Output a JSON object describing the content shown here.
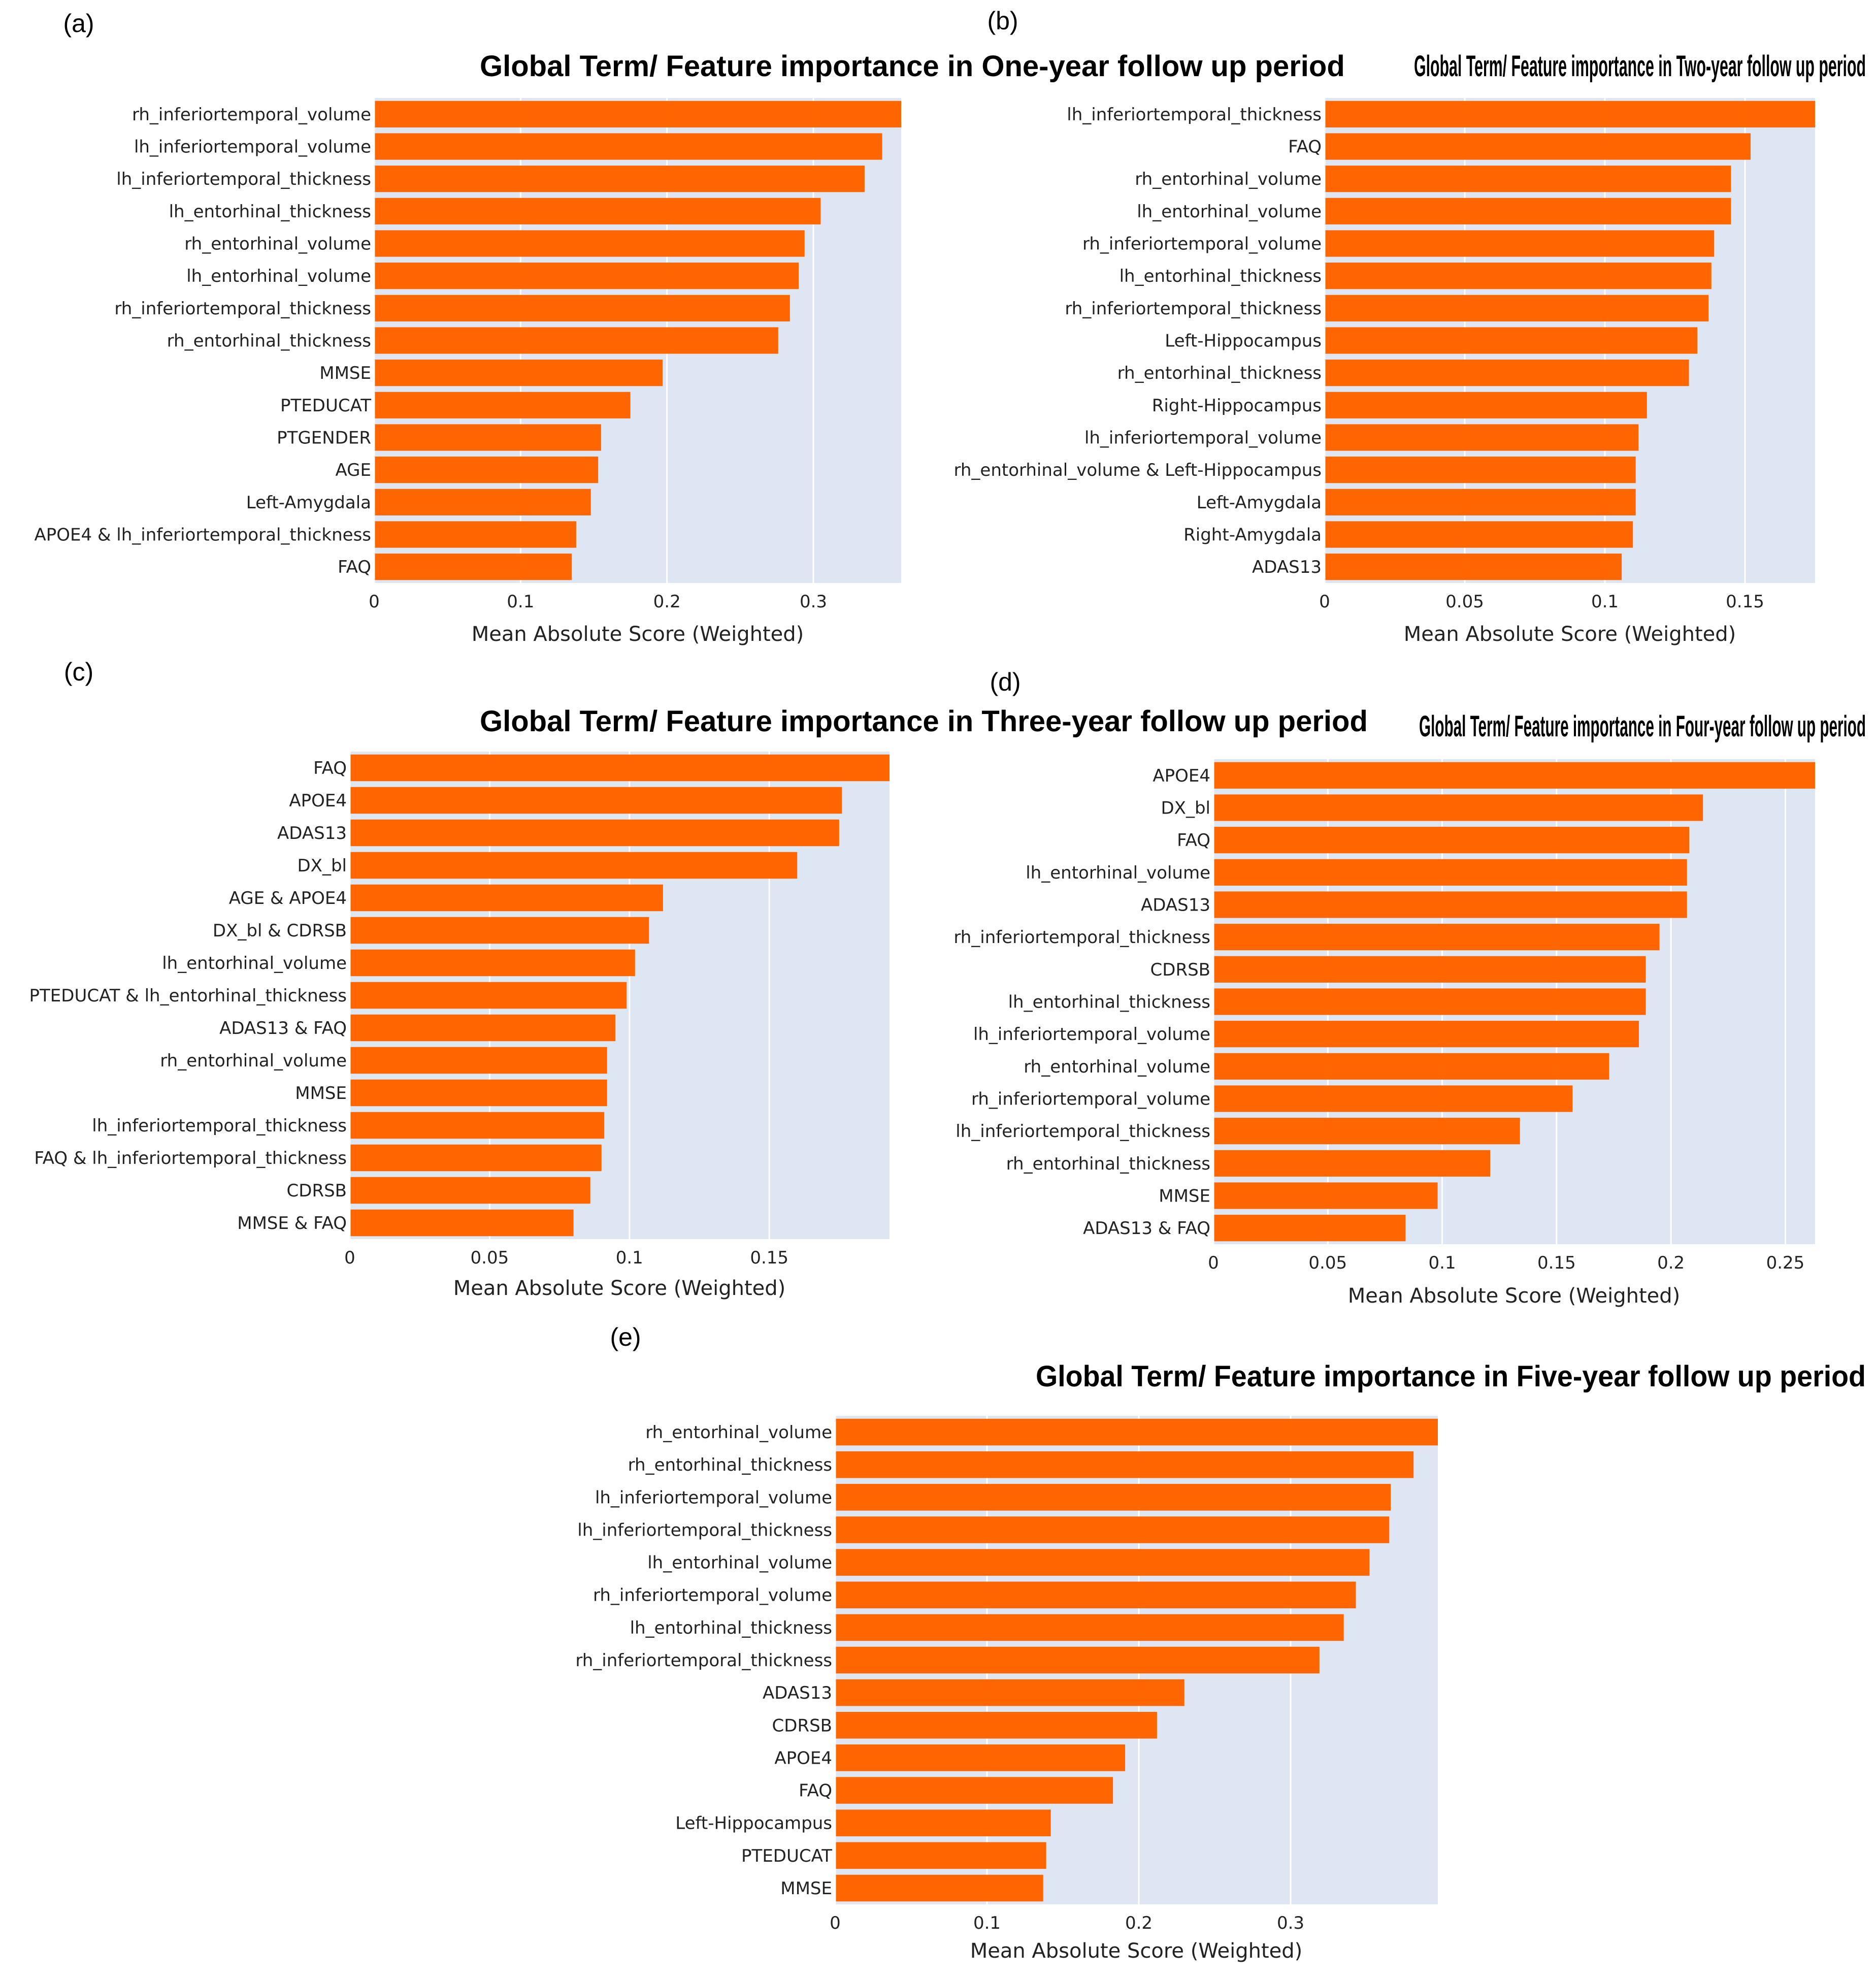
{
  "colors": {
    "bar": "#ff6600",
    "plot_bg": "#dde6f2",
    "grid": "#ffffff"
  },
  "chart_data": [
    {
      "panel": "(a)",
      "type": "bar",
      "orientation": "horizontal",
      "title": "Global Term/ Feature importance in One-year follow up period",
      "xlabel": "Mean Absolute Score (Weighted)",
      "xlim": [
        0,
        0.36
      ],
      "xticks": [
        0,
        0.1,
        0.2,
        0.3
      ],
      "xtick_labels": [
        "0",
        "0.1",
        "0.2",
        "0.3"
      ],
      "categories": [
        "rh_inferiortemporal_volume",
        "lh_inferiortemporal_volume",
        "lh_inferiortemporal_thickness",
        "lh_entorhinal_thickness",
        "rh_entorhinal_volume",
        "lh_entorhinal_volume",
        "rh_inferiortemporal_thickness",
        "rh_entorhinal_thickness",
        "MMSE",
        "PTEDUCAT",
        "PTGENDER",
        "AGE",
        "Left-Amygdala",
        "APOE4 & lh_inferiortemporal_thickness",
        "FAQ"
      ],
      "values": [
        0.36,
        0.347,
        0.335,
        0.305,
        0.294,
        0.29,
        0.284,
        0.276,
        0.197,
        0.175,
        0.155,
        0.153,
        0.148,
        0.138,
        0.135
      ]
    },
    {
      "panel": "(b)",
      "type": "bar",
      "orientation": "horizontal",
      "title": "Global Term/ Feature importance in Two-year follow up period",
      "xlabel": "Mean Absolute Score (Weighted)",
      "xlim": [
        0,
        0.175
      ],
      "xticks": [
        0,
        0.05,
        0.1,
        0.15
      ],
      "xtick_labels": [
        "0",
        "0.05",
        "0.1",
        "0.15"
      ],
      "categories": [
        "lh_inferiortemporal_thickness",
        "FAQ",
        "rh_entorhinal_volume",
        "lh_entorhinal_volume",
        "rh_inferiortemporal_volume",
        "lh_entorhinal_thickness",
        "rh_inferiortemporal_thickness",
        "Left-Hippocampus",
        "rh_entorhinal_thickness",
        "Right-Hippocampus",
        "lh_inferiortemporal_volume",
        "rh_entorhinal_volume & Left-Hippocampus",
        "Left-Amygdala",
        "Right-Amygdala",
        "ADAS13"
      ],
      "values": [
        0.175,
        0.152,
        0.145,
        0.145,
        0.139,
        0.138,
        0.137,
        0.133,
        0.13,
        0.115,
        0.112,
        0.111,
        0.111,
        0.11,
        0.106
      ]
    },
    {
      "panel": "(c)",
      "type": "bar",
      "orientation": "horizontal",
      "title": "Global Term/ Feature importance in Three-year follow up period",
      "xlabel": "Mean Absolute Score (Weighted)",
      "xlim": [
        0,
        0.193
      ],
      "xticks": [
        0,
        0.05,
        0.1,
        0.15
      ],
      "xtick_labels": [
        "0",
        "0.05",
        "0.1",
        "0.15"
      ],
      "categories": [
        "FAQ",
        "APOE4",
        "ADAS13",
        "DX_bl",
        "AGE & APOE4",
        "DX_bl & CDRSB",
        "lh_entorhinal_volume",
        "PTEDUCAT & lh_entorhinal_thickness",
        "ADAS13 & FAQ",
        "rh_entorhinal_volume",
        "MMSE",
        "lh_inferiortemporal_thickness",
        "FAQ & lh_inferiortemporal_thickness",
        "CDRSB",
        "MMSE & FAQ"
      ],
      "values": [
        0.193,
        0.176,
        0.175,
        0.16,
        0.112,
        0.107,
        0.102,
        0.099,
        0.095,
        0.092,
        0.092,
        0.091,
        0.09,
        0.086,
        0.08
      ]
    },
    {
      "panel": "(d)",
      "type": "bar",
      "orientation": "horizontal",
      "title": "Global Term/ Feature importance in Four-year follow up period",
      "xlabel": "Mean Absolute Score (Weighted)",
      "xlim": [
        0,
        0.263
      ],
      "xticks": [
        0,
        0.05,
        0.1,
        0.15,
        0.2,
        0.25
      ],
      "xtick_labels": [
        "0",
        "0.05",
        "0.1",
        "0.15",
        "0.2",
        "0.25"
      ],
      "categories": [
        "APOE4",
        "DX_bl",
        "FAQ",
        "lh_entorhinal_volume",
        "ADAS13",
        "rh_inferiortemporal_thickness",
        "CDRSB",
        "lh_entorhinal_thickness",
        "lh_inferiortemporal_volume",
        "rh_entorhinal_volume",
        "rh_inferiortemporal_volume",
        "lh_inferiortemporal_thickness",
        "rh_entorhinal_thickness",
        "MMSE",
        "ADAS13 & FAQ"
      ],
      "values": [
        0.263,
        0.214,
        0.208,
        0.207,
        0.207,
        0.195,
        0.189,
        0.189,
        0.186,
        0.173,
        0.157,
        0.134,
        0.121,
        0.098,
        0.084
      ]
    },
    {
      "panel": "(e)",
      "type": "bar",
      "orientation": "horizontal",
      "title": "Global Term/ Feature importance in Five-year follow up period",
      "xlabel": "Mean Absolute Score (Weighted)",
      "xlim": [
        0,
        0.397
      ],
      "xticks": [
        0,
        0.1,
        0.2,
        0.3
      ],
      "xtick_labels": [
        "0",
        "0.1",
        "0.2",
        "0.3"
      ],
      "categories": [
        "rh_entorhinal_volume",
        "rh_entorhinal_thickness",
        "lh_inferiortemporal_volume",
        "lh_inferiortemporal_thickness",
        "lh_entorhinal_volume",
        "rh_inferiortemporal_volume",
        "lh_entorhinal_thickness",
        "rh_inferiortemporal_thickness",
        "ADAS13",
        "CDRSB",
        "APOE4",
        "FAQ",
        "Left-Hippocampus",
        "PTEDUCAT",
        "MMSE"
      ],
      "values": [
        0.397,
        0.381,
        0.366,
        0.365,
        0.352,
        0.343,
        0.335,
        0.319,
        0.23,
        0.212,
        0.191,
        0.183,
        0.142,
        0.139,
        0.137
      ]
    }
  ]
}
